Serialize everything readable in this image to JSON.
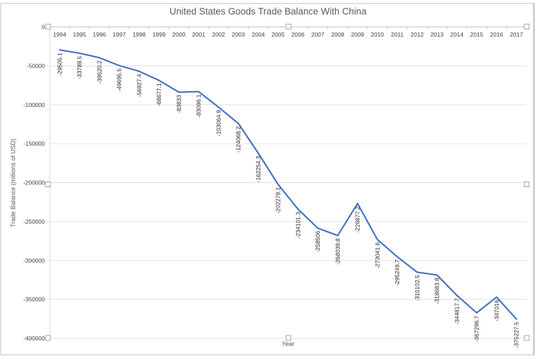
{
  "chart_data": {
    "type": "line",
    "title": "United States Goods Trade Balance With China",
    "xlabel": "Year",
    "ylabel": "Trade Balance (millions of USD)",
    "categories": [
      "1994",
      "1995",
      "1996",
      "1997",
      "1998",
      "1999",
      "2000",
      "2001",
      "2002",
      "2003",
      "2004",
      "2005",
      "2006",
      "2007",
      "2008",
      "2009",
      "2010",
      "2011",
      "2012",
      "2013",
      "2014",
      "2015",
      "2016",
      "2017"
    ],
    "values": [
      -29505.1,
      -33789.5,
      -39520.2,
      -49695.5,
      -56927.4,
      -68677.1,
      -83833,
      -83096.1,
      -103064.9,
      -124068.2,
      -162254.3,
      -202278.1,
      -234101.3,
      -258506,
      -268039.8,
      -226877.2,
      -273041.6,
      -295249.7,
      -315102.5,
      -318683.8,
      -344817.7,
      -367296.7,
      -347016,
      -375227.5
    ],
    "data_labels": [
      "-29505.1",
      "-33789.5",
      "-39520.2",
      "-49695.5",
      "-56927.4",
      "-68677.1",
      "-83833",
      "-83096.1",
      "-103064.9",
      "-124068.2",
      "-162254.3",
      "-202278.1",
      "-234101.3",
      "-258506",
      "-268039.8",
      "-226877.2",
      "-273041.6",
      "-295249.7",
      "-315102.5",
      "-318683.8",
      "-344817.7",
      "-367296.7",
      "-347016",
      "-375227.5"
    ],
    "yticks": [
      0,
      -50000,
      -100000,
      -150000,
      -200000,
      -250000,
      -300000,
      -350000,
      -400000
    ],
    "ytick_labels": [
      "0",
      "-50000",
      "-100000",
      "-150000",
      "-200000",
      "-250000",
      "-300000",
      "-350000",
      "-400000"
    ],
    "ylim": [
      -400000,
      0
    ],
    "x_tick_position": "top",
    "grid": true,
    "line_color": "#4472c4",
    "grid_color": "#d9d9d9"
  }
}
